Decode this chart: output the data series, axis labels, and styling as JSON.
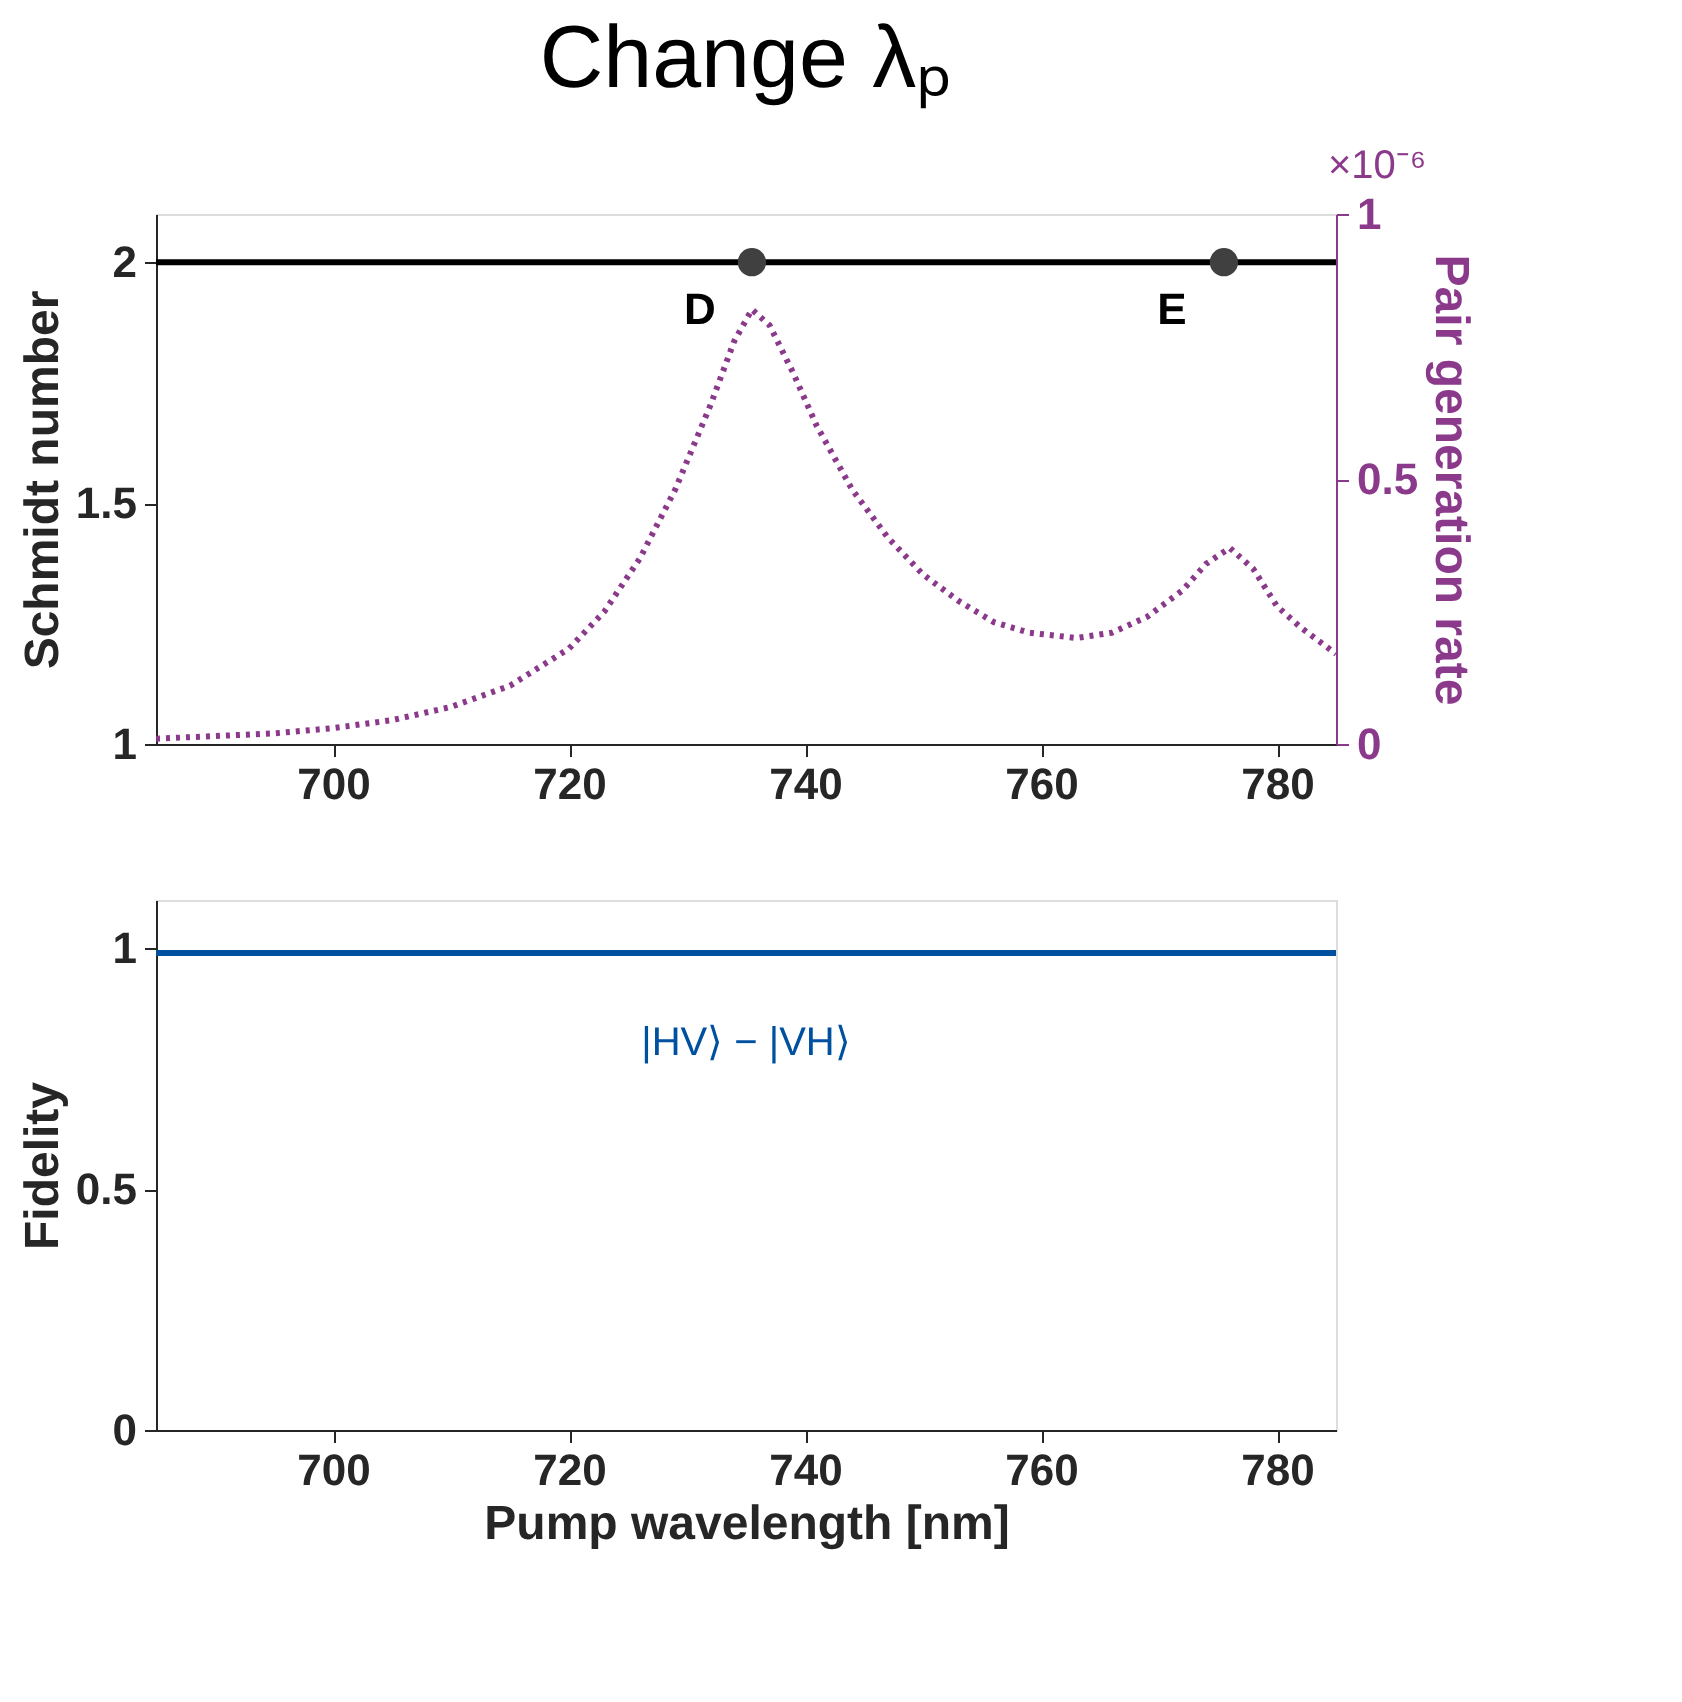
{
  "chart_data": [
    {
      "type": "line",
      "title": "Change λₚ",
      "ylabel": "Schmidt number",
      "y2label": "Pair generation rate",
      "xlim": [
        685,
        785
      ],
      "xticks": [
        700,
        720,
        740,
        760,
        780
      ],
      "ylim": [
        1,
        2.1
      ],
      "yticks": [
        1,
        1.5,
        2
      ],
      "y2lim": [
        0,
        1
      ],
      "y2ticks": [
        0,
        0.5,
        1
      ],
      "grid": false,
      "series": [
        {
          "color": "#000000",
          "x": [
            685,
            785
          ],
          "values": [
            2,
            2
          ]
        },
        {
          "type": "scatter",
          "color": "#404040",
          "marker": "circle",
          "x": [
            735.5,
            775.5
          ],
          "values": [
            2,
            2
          ]
        },
        {
          "axis": "y2",
          "color": "#8b3a8b",
          "line_style": "dotted",
          "x": [
            685,
            690,
            695,
            700,
            705,
            710,
            715,
            720,
            723,
            726,
            729,
            732,
            734,
            735.5,
            737,
            739,
            741,
            744,
            747,
            750,
            753,
            756,
            759,
            763,
            766,
            769,
            772,
            774,
            776,
            778,
            780,
            782,
            785
          ],
          "values": [
            0.01,
            0.015,
            0.02,
            0.03,
            0.045,
            0.07,
            0.11,
            0.18,
            0.25,
            0.35,
            0.48,
            0.64,
            0.76,
            0.82,
            0.79,
            0.7,
            0.6,
            0.48,
            0.39,
            0.32,
            0.27,
            0.23,
            0.21,
            0.2,
            0.21,
            0.24,
            0.29,
            0.34,
            0.37,
            0.33,
            0.26,
            0.22,
            0.17
          ]
        }
      ],
      "annotations": [
        {
          "text": "D",
          "x": 735.5,
          "y": 2
        },
        {
          "text": "E",
          "x": 775.5,
          "y": 2
        },
        "×10⁻⁶"
      ]
    },
    {
      "type": "line",
      "xlabel": "Pump wavelength [nm]",
      "ylabel": "Fidelity",
      "xlim": [
        685,
        785
      ],
      "xticks": [
        700,
        720,
        740,
        760,
        780
      ],
      "ylim": [
        0,
        1.1
      ],
      "yticks": [
        0,
        0.5,
        1
      ],
      "grid": false,
      "series": [
        {
          "name": "|HV⟩ − |VH⟩",
          "color": "#0050a0",
          "x": [
            685,
            785
          ],
          "values": [
            0.99,
            0.99
          ]
        }
      ]
    }
  ]
}
